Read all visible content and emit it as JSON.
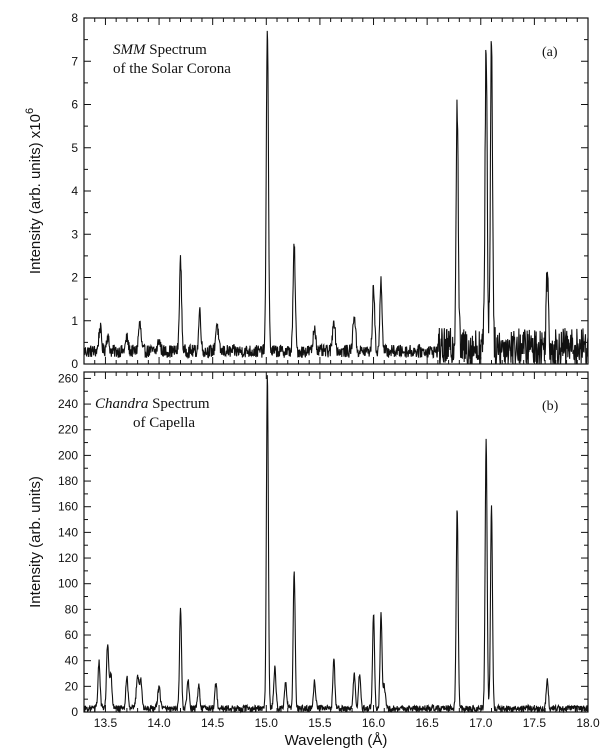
{
  "chart_data": [
    {
      "type": "line",
      "panel_label": "(a)",
      "annotation": [
        "SMM Spectrum",
        "of the Solar Corona"
      ],
      "annotation_italic": "SMM",
      "ylabel": "Intensity (arb. units) x10",
      "ylabel_exponent": "6",
      "xlim": [
        13.3,
        18.0
      ],
      "ylim": [
        0,
        8
      ],
      "y_ticks": [
        0,
        1,
        2,
        3,
        4,
        5,
        6,
        7,
        8
      ],
      "y_tick_labels": [
        "0",
        "1",
        "2",
        "3",
        "4",
        "5",
        "6",
        "7",
        "8"
      ],
      "grid": false,
      "baseline": 0.25,
      "noise": [
        {
          "from": 13.3,
          "to": 16.6,
          "amp": 0.15
        },
        {
          "from": 16.6,
          "to": 18.0,
          "amp": 0.45
        }
      ],
      "series": [
        {
          "peaks": [
            {
              "x": 13.45,
              "y": 0.8,
              "w": 0.012
            },
            {
              "x": 13.52,
              "y": 0.6,
              "w": 0.012
            },
            {
              "x": 13.7,
              "y": 0.55,
              "w": 0.012
            },
            {
              "x": 13.82,
              "y": 0.9,
              "w": 0.012
            },
            {
              "x": 14.0,
              "y": 0.5,
              "w": 0.012
            },
            {
              "x": 14.2,
              "y": 2.35,
              "w": 0.01
            },
            {
              "x": 14.38,
              "y": 1.2,
              "w": 0.01
            },
            {
              "x": 14.54,
              "y": 0.9,
              "w": 0.012
            },
            {
              "x": 15.01,
              "y": 7.75,
              "w": 0.01
            },
            {
              "x": 15.26,
              "y": 2.7,
              "w": 0.01
            },
            {
              "x": 15.45,
              "y": 0.8,
              "w": 0.012
            },
            {
              "x": 15.63,
              "y": 1.0,
              "w": 0.012
            },
            {
              "x": 15.82,
              "y": 1.1,
              "w": 0.012
            },
            {
              "x": 16.0,
              "y": 1.75,
              "w": 0.01
            },
            {
              "x": 16.07,
              "y": 1.9,
              "w": 0.01
            },
            {
              "x": 16.78,
              "y": 5.95,
              "w": 0.01
            },
            {
              "x": 17.05,
              "y": 7.25,
              "w": 0.01
            },
            {
              "x": 17.1,
              "y": 7.4,
              "w": 0.01
            },
            {
              "x": 17.62,
              "y": 2.0,
              "w": 0.01
            }
          ]
        }
      ]
    },
    {
      "type": "line",
      "panel_label": "(b)",
      "annotation": [
        "Chandra Spectrum",
        "of Capella"
      ],
      "annotation_italic": "Chandra",
      "ylabel": "Intensity (arb. units)",
      "xlabel": "Wavelength (Å)",
      "xlim": [
        13.3,
        18.0
      ],
      "ylim": [
        0,
        265
      ],
      "x_ticks": [
        13.5,
        14.0,
        14.5,
        15.0,
        15.5,
        16.0,
        16.5,
        17.0,
        17.5,
        18.0
      ],
      "x_tick_labels": [
        "13.5",
        "14.0",
        "14.5",
        "15.0",
        "15.5",
        "16.0",
        "16.5",
        "17.0",
        "17.5",
        "18.0"
      ],
      "y_ticks": [
        0,
        20,
        40,
        60,
        80,
        100,
        120,
        140,
        160,
        180,
        200,
        220,
        240,
        260
      ],
      "y_tick_labels": [
        "0",
        "20",
        "40",
        "60",
        "80",
        "100",
        "120",
        "140",
        "160",
        "180",
        "200",
        "220",
        "240",
        "260"
      ],
      "grid": false,
      "baseline": 2,
      "noise": [
        {
          "from": 13.3,
          "to": 18.0,
          "amp": 2.5
        }
      ],
      "series": [
        {
          "peaks": [
            {
              "x": 13.44,
              "y": 38,
              "w": 0.01
            },
            {
              "x": 13.52,
              "y": 52,
              "w": 0.01
            },
            {
              "x": 13.55,
              "y": 30,
              "w": 0.01
            },
            {
              "x": 13.7,
              "y": 26,
              "w": 0.01
            },
            {
              "x": 13.8,
              "y": 28,
              "w": 0.012
            },
            {
              "x": 13.83,
              "y": 24,
              "w": 0.01
            },
            {
              "x": 14.0,
              "y": 18,
              "w": 0.012
            },
            {
              "x": 14.2,
              "y": 80,
              "w": 0.009
            },
            {
              "x": 14.27,
              "y": 24,
              "w": 0.01
            },
            {
              "x": 14.37,
              "y": 20,
              "w": 0.01
            },
            {
              "x": 14.53,
              "y": 21,
              "w": 0.01
            },
            {
              "x": 15.01,
              "y": 262,
              "w": 0.009
            },
            {
              "x": 15.08,
              "y": 34,
              "w": 0.01
            },
            {
              "x": 15.18,
              "y": 22,
              "w": 0.01
            },
            {
              "x": 15.26,
              "y": 110,
              "w": 0.009
            },
            {
              "x": 15.45,
              "y": 24,
              "w": 0.01
            },
            {
              "x": 15.63,
              "y": 42,
              "w": 0.009
            },
            {
              "x": 15.82,
              "y": 28,
              "w": 0.01
            },
            {
              "x": 15.87,
              "y": 28,
              "w": 0.01
            },
            {
              "x": 16.0,
              "y": 76,
              "w": 0.009
            },
            {
              "x": 16.07,
              "y": 75,
              "w": 0.009
            },
            {
              "x": 16.1,
              "y": 20,
              "w": 0.01
            },
            {
              "x": 16.78,
              "y": 158,
              "w": 0.009
            },
            {
              "x": 17.05,
              "y": 210,
              "w": 0.009
            },
            {
              "x": 17.1,
              "y": 158,
              "w": 0.009
            },
            {
              "x": 17.62,
              "y": 26,
              "w": 0.009
            }
          ]
        }
      ]
    }
  ]
}
